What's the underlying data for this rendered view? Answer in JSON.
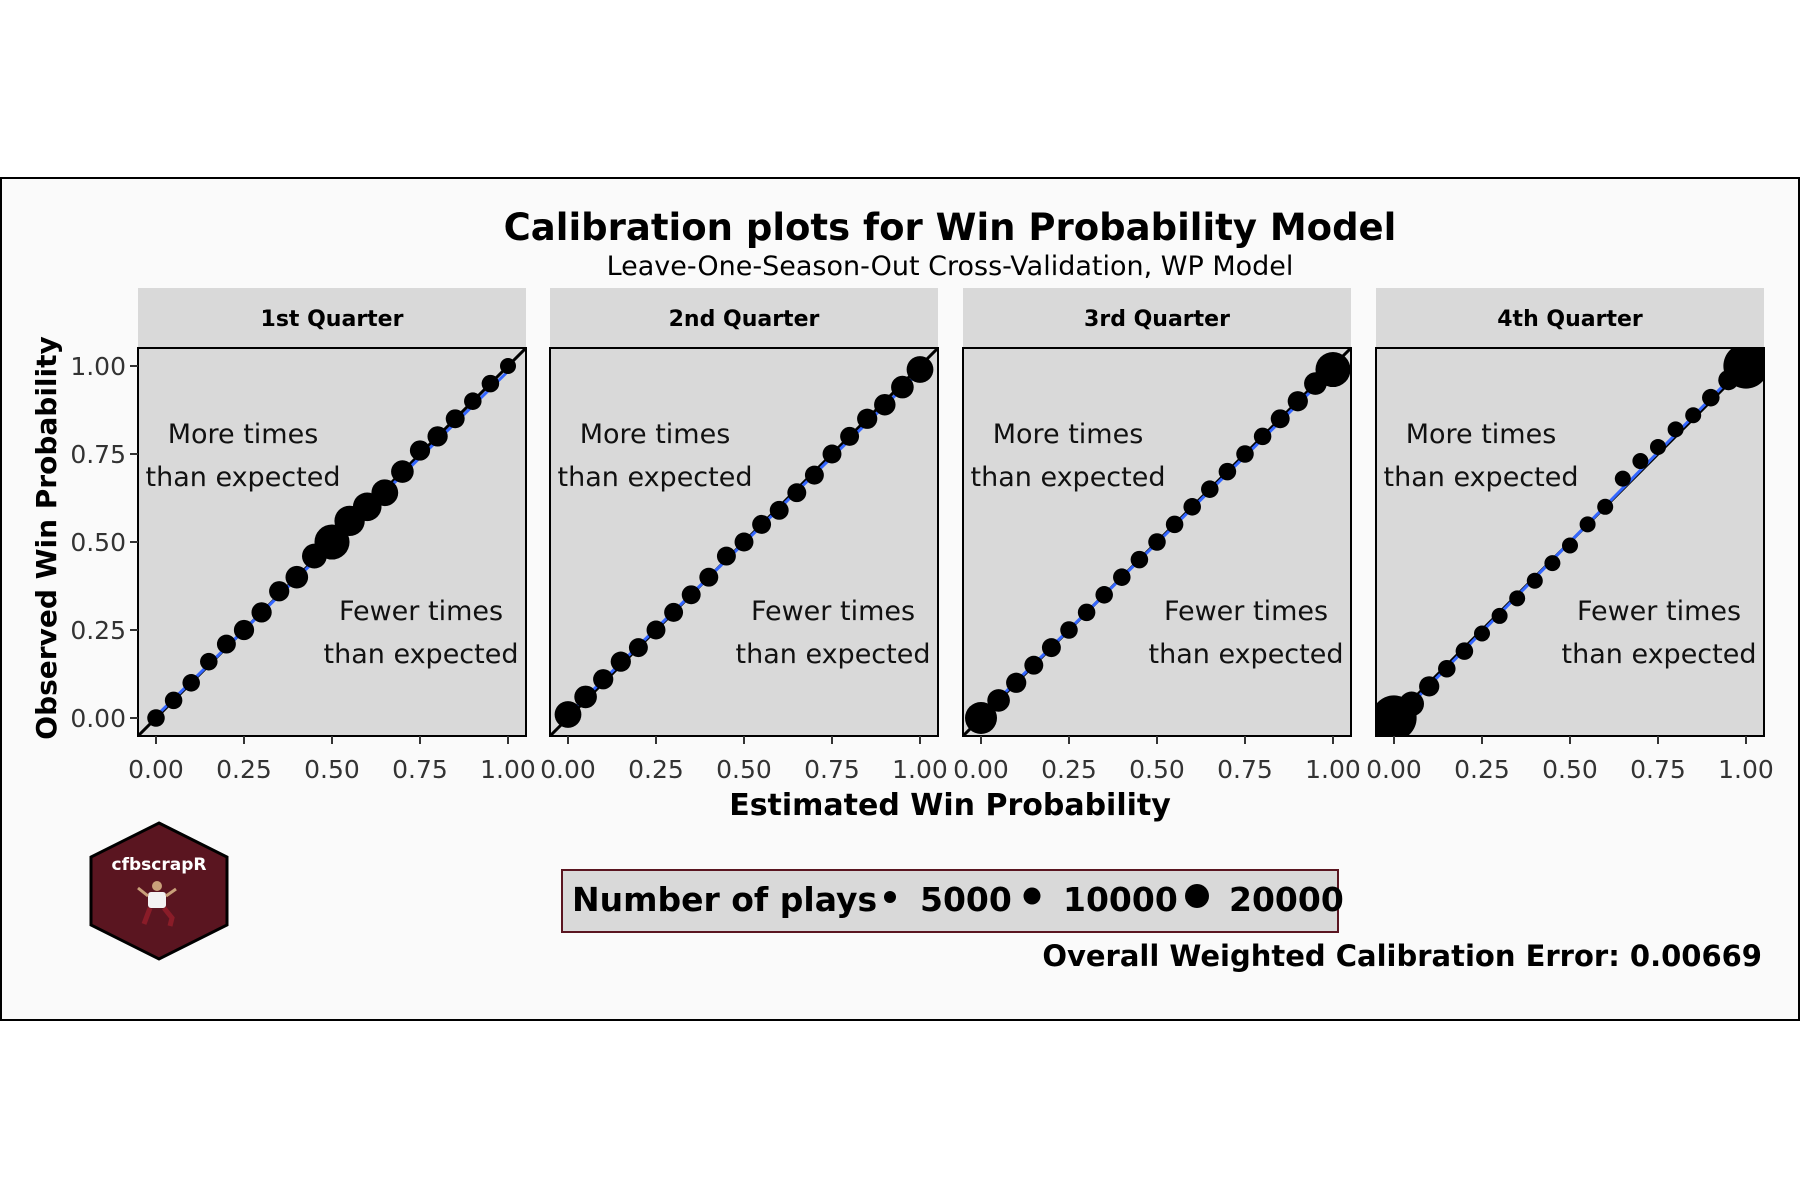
{
  "figure": {
    "title": "Calibration plots for Win Probability Model",
    "subtitle": "Leave-One-Season-Out Cross-Validation, WP Model",
    "x_axis_label": "Estimated Win Probability",
    "y_axis_label": "Observed Win Probability",
    "footer_text": "Overall Weighted Calibration Error: 0.00669",
    "logo_text": "cfbscrapR"
  },
  "legend": {
    "title": "Number of plays",
    "entries": [
      "5000",
      "10000",
      "20000"
    ],
    "placement": "bottom-center"
  },
  "annotations": {
    "upper_left": [
      "More times",
      "than expected"
    ],
    "lower_right": [
      "Fewer times",
      "than expected"
    ]
  },
  "colors": {
    "panel_background": "#d9d9d9",
    "strip_background": "#d9d9d9",
    "plot_background": "#fafafa",
    "points": "#000000",
    "reference_line": "#000000",
    "fit_line": "#3366ff",
    "logo_fill": "#5a1520"
  },
  "chart_data": [
    {
      "type": "scatter",
      "panel": "1st Quarter",
      "xlim": [
        0,
        1
      ],
      "ylim": [
        0,
        1
      ],
      "xticks": [
        "0.00",
        "0.25",
        "0.50",
        "0.75",
        "1.00"
      ],
      "yticks": [
        "0.00",
        "0.25",
        "0.50",
        "0.75",
        "1.00"
      ],
      "points": [
        {
          "x": 0.0,
          "y": 0.0,
          "n": 3000
        },
        {
          "x": 0.05,
          "y": 0.05,
          "n": 3000
        },
        {
          "x": 0.1,
          "y": 0.1,
          "n": 3000
        },
        {
          "x": 0.15,
          "y": 0.16,
          "n": 3000
        },
        {
          "x": 0.2,
          "y": 0.21,
          "n": 3500
        },
        {
          "x": 0.25,
          "y": 0.25,
          "n": 4000
        },
        {
          "x": 0.3,
          "y": 0.3,
          "n": 4000
        },
        {
          "x": 0.35,
          "y": 0.36,
          "n": 4000
        },
        {
          "x": 0.4,
          "y": 0.4,
          "n": 5000
        },
        {
          "x": 0.45,
          "y": 0.46,
          "n": 6000
        },
        {
          "x": 0.5,
          "y": 0.5,
          "n": 12000
        },
        {
          "x": 0.55,
          "y": 0.56,
          "n": 9000
        },
        {
          "x": 0.6,
          "y": 0.6,
          "n": 8000
        },
        {
          "x": 0.65,
          "y": 0.64,
          "n": 7000
        },
        {
          "x": 0.7,
          "y": 0.7,
          "n": 5000
        },
        {
          "x": 0.75,
          "y": 0.76,
          "n": 4000
        },
        {
          "x": 0.8,
          "y": 0.8,
          "n": 4000
        },
        {
          "x": 0.85,
          "y": 0.85,
          "n": 3500
        },
        {
          "x": 0.9,
          "y": 0.9,
          "n": 3000
        },
        {
          "x": 0.95,
          "y": 0.95,
          "n": 3000
        },
        {
          "x": 1.0,
          "y": 1.0,
          "n": 2500
        }
      ],
      "fit": [
        [
          0,
          0.005
        ],
        [
          1,
          0.985
        ]
      ]
    },
    {
      "type": "scatter",
      "panel": "2nd Quarter",
      "xlim": [
        0,
        1
      ],
      "ylim": [
        0,
        1
      ],
      "xticks": [
        "0.00",
        "0.25",
        "0.50",
        "0.75",
        "1.00"
      ],
      "yticks": [
        "0.00",
        "0.25",
        "0.50",
        "0.75",
        "1.00"
      ],
      "points": [
        {
          "x": 0.0,
          "y": 0.01,
          "n": 7000
        },
        {
          "x": 0.05,
          "y": 0.06,
          "n": 5000
        },
        {
          "x": 0.1,
          "y": 0.11,
          "n": 4000
        },
        {
          "x": 0.15,
          "y": 0.16,
          "n": 4000
        },
        {
          "x": 0.2,
          "y": 0.2,
          "n": 3500
        },
        {
          "x": 0.25,
          "y": 0.25,
          "n": 3500
        },
        {
          "x": 0.3,
          "y": 0.3,
          "n": 3500
        },
        {
          "x": 0.35,
          "y": 0.35,
          "n": 3500
        },
        {
          "x": 0.4,
          "y": 0.4,
          "n": 3500
        },
        {
          "x": 0.45,
          "y": 0.46,
          "n": 3500
        },
        {
          "x": 0.5,
          "y": 0.5,
          "n": 3500
        },
        {
          "x": 0.55,
          "y": 0.55,
          "n": 3500
        },
        {
          "x": 0.6,
          "y": 0.59,
          "n": 3500
        },
        {
          "x": 0.65,
          "y": 0.64,
          "n": 3500
        },
        {
          "x": 0.7,
          "y": 0.69,
          "n": 3500
        },
        {
          "x": 0.75,
          "y": 0.75,
          "n": 3500
        },
        {
          "x": 0.8,
          "y": 0.8,
          "n": 3500
        },
        {
          "x": 0.85,
          "y": 0.85,
          "n": 4000
        },
        {
          "x": 0.9,
          "y": 0.89,
          "n": 4500
        },
        {
          "x": 0.95,
          "y": 0.94,
          "n": 5000
        },
        {
          "x": 1.0,
          "y": 0.99,
          "n": 7000
        }
      ],
      "fit": [
        [
          0,
          0.01
        ],
        [
          1,
          0.985
        ]
      ]
    },
    {
      "type": "scatter",
      "panel": "3rd Quarter",
      "xlim": [
        0,
        1
      ],
      "ylim": [
        0,
        1
      ],
      "xticks": [
        "0.00",
        "0.25",
        "0.50",
        "0.75",
        "1.00"
      ],
      "yticks": [
        "0.00",
        "0.25",
        "0.50",
        "0.75",
        "1.00"
      ],
      "points": [
        {
          "x": 0.0,
          "y": 0.0,
          "n": 10000
        },
        {
          "x": 0.05,
          "y": 0.05,
          "n": 5000
        },
        {
          "x": 0.1,
          "y": 0.1,
          "n": 4000
        },
        {
          "x": 0.15,
          "y": 0.15,
          "n": 3500
        },
        {
          "x": 0.2,
          "y": 0.2,
          "n": 3500
        },
        {
          "x": 0.25,
          "y": 0.25,
          "n": 3000
        },
        {
          "x": 0.3,
          "y": 0.3,
          "n": 3000
        },
        {
          "x": 0.35,
          "y": 0.35,
          "n": 3000
        },
        {
          "x": 0.4,
          "y": 0.4,
          "n": 3000
        },
        {
          "x": 0.45,
          "y": 0.45,
          "n": 3000
        },
        {
          "x": 0.5,
          "y": 0.5,
          "n": 3000
        },
        {
          "x": 0.55,
          "y": 0.55,
          "n": 3000
        },
        {
          "x": 0.6,
          "y": 0.6,
          "n": 3000
        },
        {
          "x": 0.65,
          "y": 0.65,
          "n": 3000
        },
        {
          "x": 0.7,
          "y": 0.7,
          "n": 3000
        },
        {
          "x": 0.75,
          "y": 0.75,
          "n": 3000
        },
        {
          "x": 0.8,
          "y": 0.8,
          "n": 3000
        },
        {
          "x": 0.85,
          "y": 0.85,
          "n": 3500
        },
        {
          "x": 0.9,
          "y": 0.9,
          "n": 4000
        },
        {
          "x": 0.95,
          "y": 0.95,
          "n": 5000
        },
        {
          "x": 1.0,
          "y": 0.99,
          "n": 12000
        }
      ],
      "fit": [
        [
          0,
          0.005
        ],
        [
          1,
          0.99
        ]
      ]
    },
    {
      "type": "scatter",
      "panel": "4th Quarter",
      "xlim": [
        0,
        1
      ],
      "ylim": [
        0,
        1
      ],
      "xticks": [
        "0.00",
        "0.25",
        "0.50",
        "0.75",
        "1.00"
      ],
      "yticks": [
        "0.00",
        "0.25",
        "0.50",
        "0.75",
        "1.00"
      ],
      "points": [
        {
          "x": 0.0,
          "y": 0.0,
          "n": 20000
        },
        {
          "x": 0.05,
          "y": 0.04,
          "n": 6000
        },
        {
          "x": 0.1,
          "y": 0.09,
          "n": 4000
        },
        {
          "x": 0.15,
          "y": 0.14,
          "n": 3000
        },
        {
          "x": 0.2,
          "y": 0.19,
          "n": 3000
        },
        {
          "x": 0.25,
          "y": 0.24,
          "n": 2500
        },
        {
          "x": 0.3,
          "y": 0.29,
          "n": 2500
        },
        {
          "x": 0.35,
          "y": 0.34,
          "n": 2500
        },
        {
          "x": 0.4,
          "y": 0.39,
          "n": 2500
        },
        {
          "x": 0.45,
          "y": 0.44,
          "n": 2500
        },
        {
          "x": 0.5,
          "y": 0.49,
          "n": 2500
        },
        {
          "x": 0.55,
          "y": 0.55,
          "n": 2500
        },
        {
          "x": 0.6,
          "y": 0.6,
          "n": 2500
        },
        {
          "x": 0.65,
          "y": 0.68,
          "n": 2500
        },
        {
          "x": 0.7,
          "y": 0.73,
          "n": 2500
        },
        {
          "x": 0.75,
          "y": 0.77,
          "n": 2500
        },
        {
          "x": 0.8,
          "y": 0.82,
          "n": 2500
        },
        {
          "x": 0.85,
          "y": 0.86,
          "n": 2500
        },
        {
          "x": 0.9,
          "y": 0.91,
          "n": 3000
        },
        {
          "x": 0.95,
          "y": 0.96,
          "n": 4000
        },
        {
          "x": 1.0,
          "y": 1.0,
          "n": 20000
        }
      ],
      "fit": [
        [
          0,
          -0.01
        ],
        [
          1,
          1.01
        ]
      ]
    }
  ]
}
